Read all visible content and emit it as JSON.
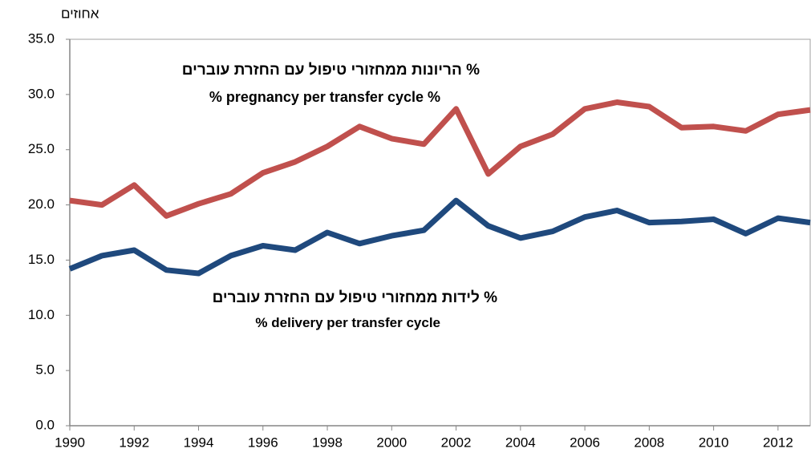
{
  "chart_data": {
    "type": "line",
    "y_axis_label": "אחוזים",
    "x": [
      1990,
      1991,
      1992,
      1993,
      1994,
      1995,
      1996,
      1997,
      1998,
      1999,
      2000,
      2001,
      2002,
      2003,
      2004,
      2005,
      2006,
      2007,
      2008,
      2009,
      2010,
      2011,
      2012,
      2013
    ],
    "series": [
      {
        "name": "% הריונות ממחזורי טיפול עם החזרת עוברים",
        "name_en": "% pregnancy per transfer cycle %",
        "color": "#c0504d",
        "values": [
          20.4,
          20.0,
          21.8,
          19.0,
          20.1,
          21.0,
          22.9,
          23.9,
          25.3,
          27.1,
          26.0,
          25.5,
          28.7,
          22.8,
          25.3,
          26.4,
          28.7,
          29.3,
          28.9,
          27.0,
          27.1,
          26.7,
          28.2,
          28.6
        ]
      },
      {
        "name": "% לידות ממחזורי טיפול עם החזרת עוברים",
        "name_en": "% delivery per transfer cycle",
        "color": "#1f497d",
        "values": [
          14.2,
          15.4,
          15.9,
          14.1,
          13.8,
          15.4,
          16.3,
          15.9,
          17.5,
          16.5,
          17.2,
          17.7,
          20.4,
          18.1,
          17.0,
          17.6,
          18.9,
          19.5,
          18.4,
          18.5,
          18.7,
          17.4,
          18.8,
          18.4
        ]
      }
    ],
    "xlim": [
      1990,
      2013
    ],
    "xticks": [
      1990,
      1992,
      1994,
      1996,
      1998,
      2000,
      2002,
      2004,
      2006,
      2008,
      2010,
      2012
    ],
    "ylim": [
      0,
      35
    ],
    "yticks": [
      {
        "value": 0,
        "label": "0.0"
      },
      {
        "value": 5,
        "label": "5.0"
      },
      {
        "value": 10,
        "label": "10.0"
      },
      {
        "value": 15,
        "label": "15.0"
      },
      {
        "value": 20,
        "label": "20.0"
      },
      {
        "value": 25,
        "label": "25.0"
      },
      {
        "value": 30,
        "label": "30.0"
      },
      {
        "value": 35,
        "label": "35.0"
      }
    ],
    "grid": false
  }
}
